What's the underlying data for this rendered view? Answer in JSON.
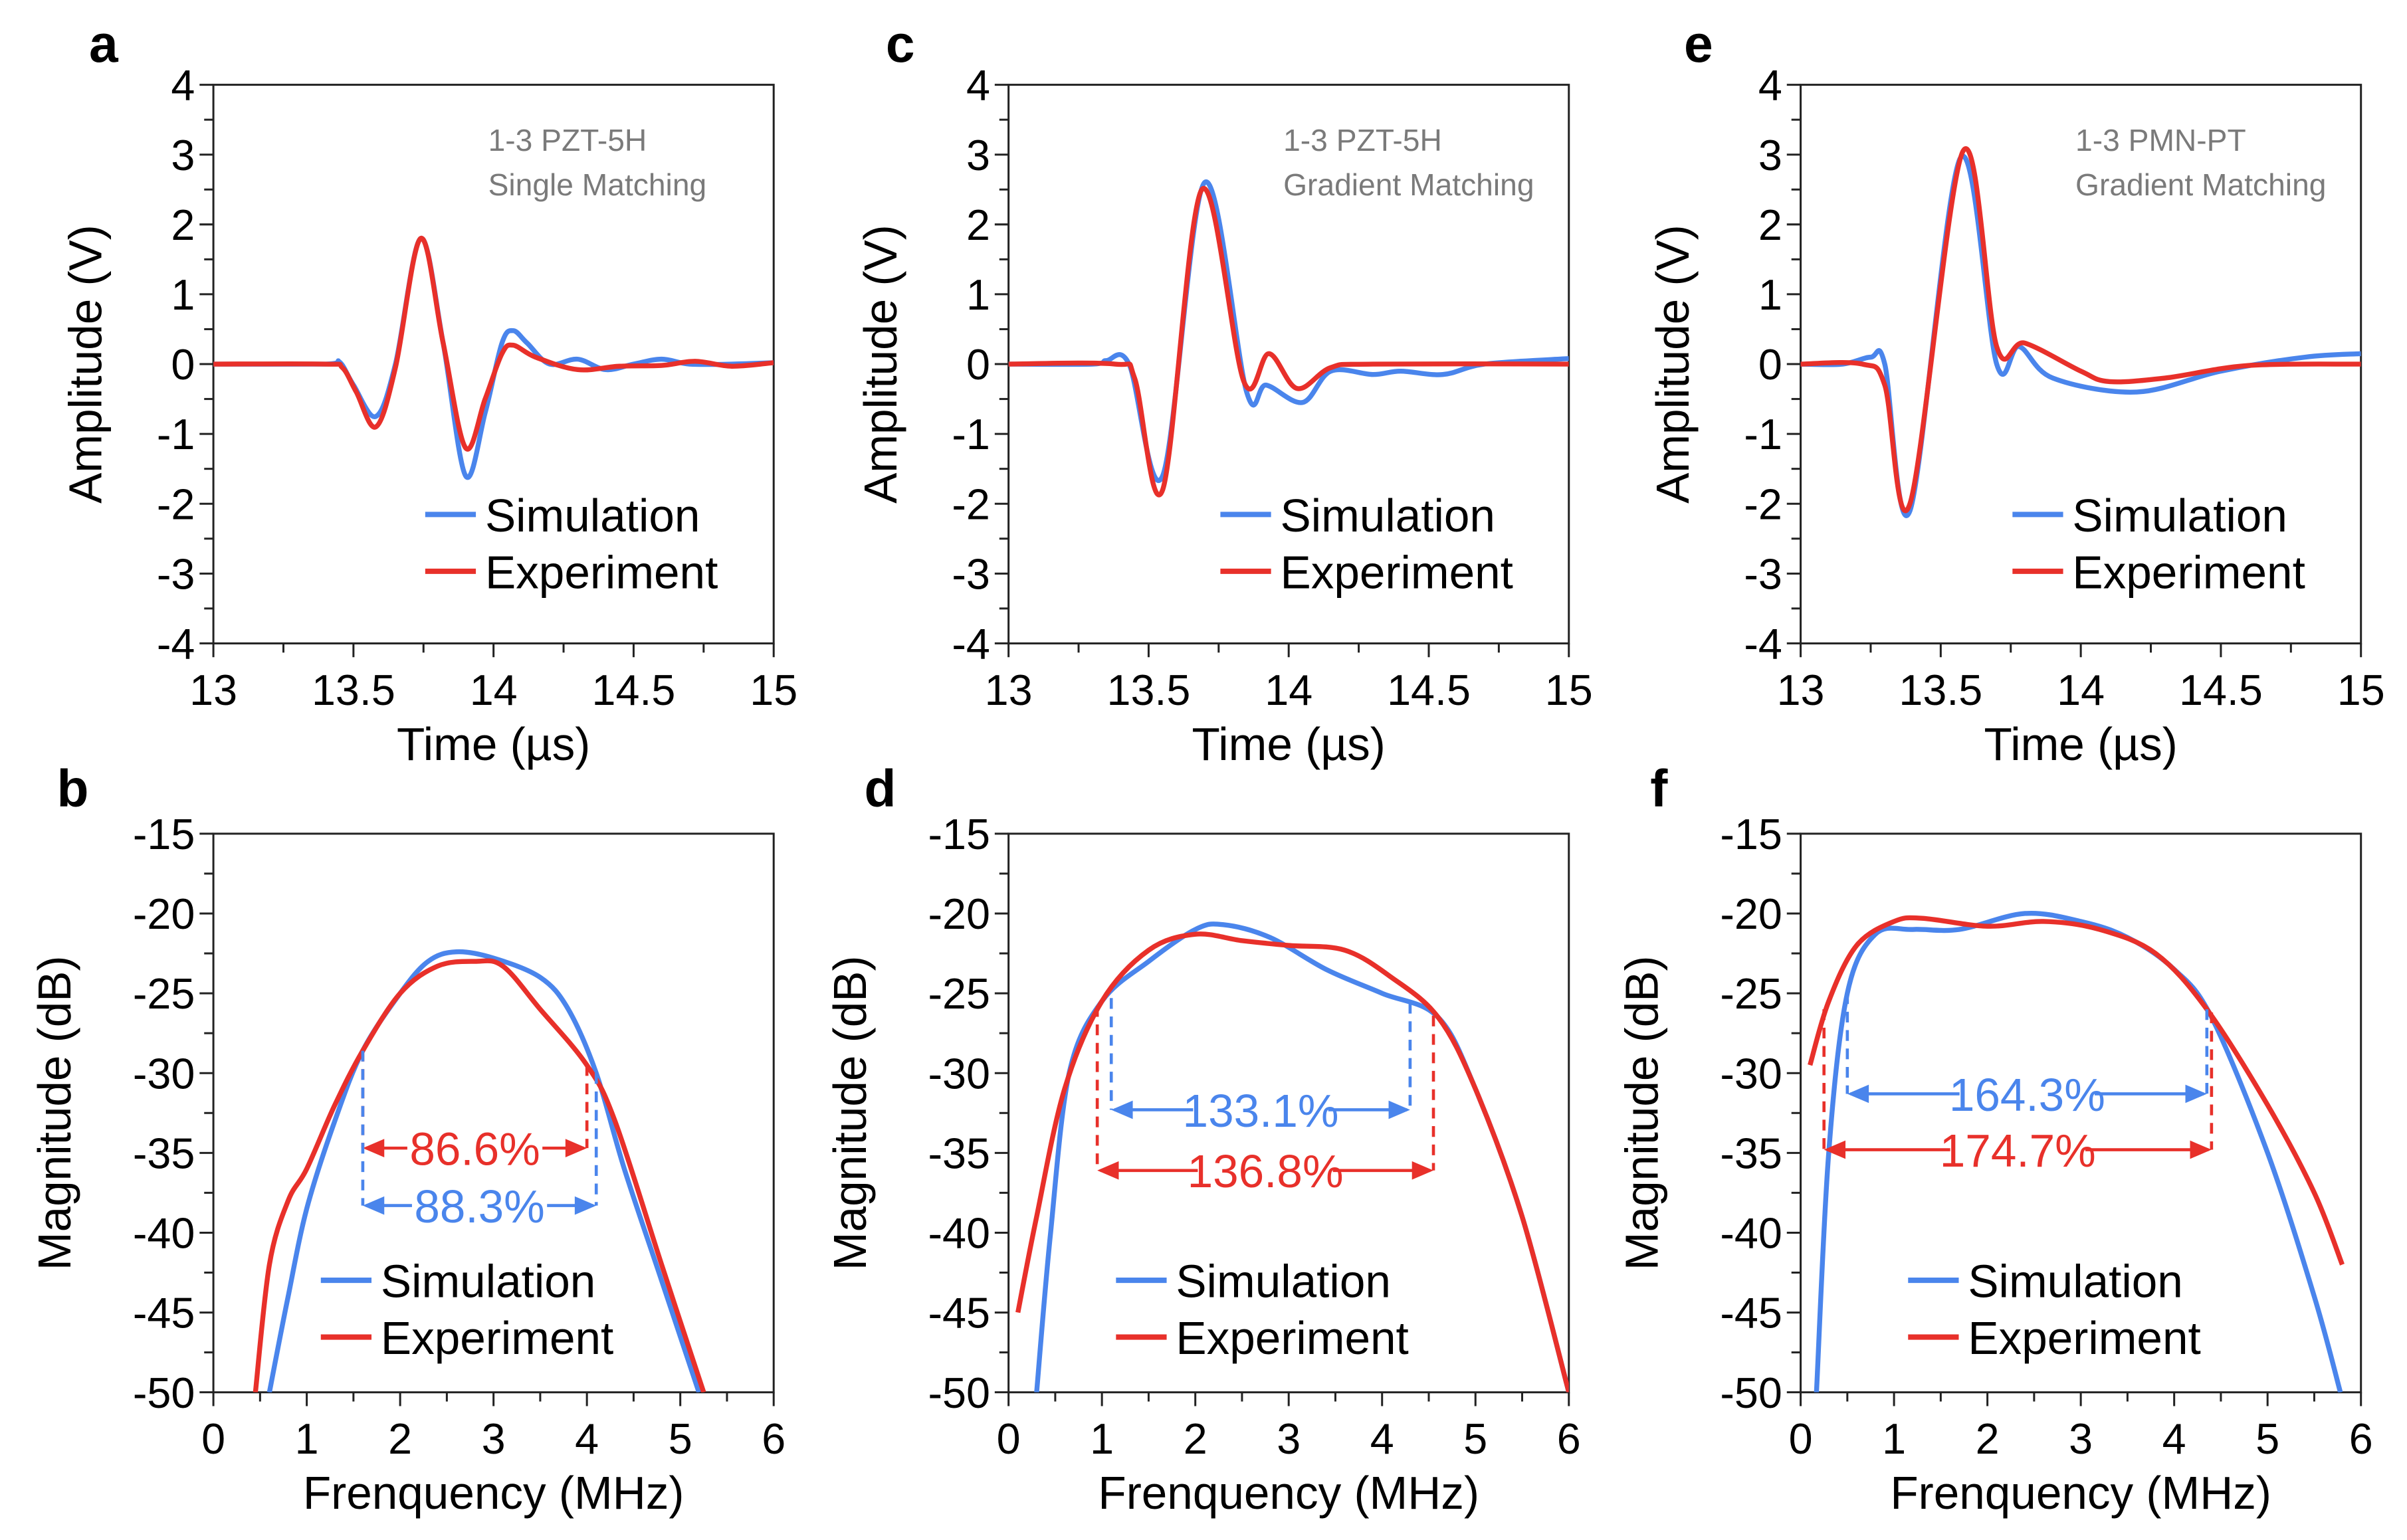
{
  "colors": {
    "simulation": "#4a85ec",
    "experiment": "#e8302a",
    "note": "#7a7a7a"
  },
  "chart_data": [
    {
      "panel": "a",
      "type": "line",
      "xlabel": "Time (µs)",
      "ylabel": "Amplitude (V)",
      "xlim": [
        13,
        15
      ],
      "ylim": [
        -4,
        4
      ],
      "xticks": [
        "13",
        "13.5",
        "14",
        "14.5",
        "15"
      ],
      "xtick_values": [
        13,
        13.5,
        14,
        14.5,
        15
      ],
      "yticks": [
        "-4",
        "-3",
        "-2",
        "-1",
        "0",
        "1",
        "2",
        "3",
        "4"
      ],
      "ytick_values": [
        -4,
        -3,
        -2,
        -1,
        0,
        1,
        2,
        3,
        4
      ],
      "annotation": [
        "1-3 PZT-5H",
        "Single Matching"
      ],
      "series": [
        {
          "name": "Simulation",
          "color": "#4a85ec",
          "points": [
            [
              13,
              0
            ],
            [
              13.4,
              0
            ],
            [
              13.45,
              0.03
            ],
            [
              13.5,
              -0.3
            ],
            [
              13.58,
              -0.75
            ],
            [
              13.65,
              0
            ],
            [
              13.74,
              1.8
            ],
            [
              13.82,
              0.3
            ],
            [
              13.9,
              -1.6
            ],
            [
              13.97,
              -0.7
            ],
            [
              14.03,
              0.3
            ],
            [
              14.07,
              0.48
            ],
            [
              14.12,
              0.3
            ],
            [
              14.2,
              0
            ],
            [
              14.3,
              0.07
            ],
            [
              14.4,
              -0.08
            ],
            [
              14.5,
              0
            ],
            [
              14.6,
              0.07
            ],
            [
              14.7,
              0
            ],
            [
              14.85,
              0
            ],
            [
              15,
              0.02
            ]
          ]
        },
        {
          "name": "Experiment",
          "color": "#e8302a",
          "points": [
            [
              13,
              0
            ],
            [
              13.4,
              0
            ],
            [
              13.46,
              -0.05
            ],
            [
              13.51,
              -0.4
            ],
            [
              13.58,
              -0.9
            ],
            [
              13.65,
              -0.05
            ],
            [
              13.74,
              1.8
            ],
            [
              13.82,
              0.3
            ],
            [
              13.9,
              -1.2
            ],
            [
              13.97,
              -0.5
            ],
            [
              14.03,
              0.15
            ],
            [
              14.07,
              0.27
            ],
            [
              14.15,
              0.1
            ],
            [
              14.3,
              -0.08
            ],
            [
              14.45,
              -0.03
            ],
            [
              14.6,
              -0.02
            ],
            [
              14.72,
              0.04
            ],
            [
              14.85,
              -0.03
            ],
            [
              15,
              0.02
            ]
          ]
        }
      ]
    },
    {
      "panel": "b",
      "type": "line",
      "xlabel": "Frenquency (MHz)",
      "ylabel": "Magnitude (dB)",
      "xlim": [
        0,
        6
      ],
      "ylim": [
        -50,
        -15
      ],
      "xticks": [
        "0",
        "1",
        "2",
        "3",
        "4",
        "5",
        "6"
      ],
      "xtick_values": [
        0,
        1,
        2,
        3,
        4,
        5,
        6
      ],
      "yticks": [
        "-50",
        "-45",
        "-40",
        "-35",
        "-30",
        "-25",
        "-20",
        "-15"
      ],
      "ytick_values": [
        -50,
        -45,
        -40,
        -35,
        -30,
        -25,
        -20,
        -15
      ],
      "series": [
        {
          "name": "Simulation",
          "color": "#4a85ec",
          "points": [
            [
              0.6,
              -50
            ],
            [
              0.8,
              -44
            ],
            [
              1.0,
              -38.5
            ],
            [
              1.3,
              -33
            ],
            [
              1.6,
              -28.6
            ],
            [
              2.0,
              -25
            ],
            [
              2.3,
              -23
            ],
            [
              2.6,
              -22.4
            ],
            [
              3.0,
              -22.8
            ],
            [
              3.5,
              -24
            ],
            [
              3.8,
              -26
            ],
            [
              4.1,
              -30
            ],
            [
              4.4,
              -36
            ],
            [
              4.8,
              -43
            ],
            [
              5.2,
              -50
            ]
          ]
        },
        {
          "name": "Experiment",
          "color": "#e8302a",
          "points": [
            [
              0.45,
              -50
            ],
            [
              0.6,
              -42
            ],
            [
              0.8,
              -38
            ],
            [
              1.0,
              -36
            ],
            [
              1.3,
              -32
            ],
            [
              1.6,
              -28.6
            ],
            [
              2.0,
              -25
            ],
            [
              2.4,
              -23.3
            ],
            [
              2.8,
              -23
            ],
            [
              3.1,
              -23.3
            ],
            [
              3.5,
              -26
            ],
            [
              4.0,
              -29.5
            ],
            [
              4.3,
              -33
            ],
            [
              4.8,
              -42
            ],
            [
              5.25,
              -50
            ]
          ]
        }
      ],
      "bandwidths": [
        {
          "label": "86.6%",
          "color": "#e8302a",
          "x1": 1.6,
          "x2": 4.0,
          "y": -34.7,
          "y1top": -28.6,
          "y2top": -29.5
        },
        {
          "label": "88.3%",
          "color": "#4a85ec",
          "x1": 1.6,
          "x2": 4.1,
          "y": -38.3,
          "y1top": -28.6,
          "y2top": -30
        }
      ]
    },
    {
      "panel": "c",
      "type": "line",
      "xlabel": "Time (µs)",
      "ylabel": "Amplitude (V)",
      "xlim": [
        13,
        15
      ],
      "ylim": [
        -4,
        4
      ],
      "xticks": [
        "13",
        "13.5",
        "14",
        "14.5",
        "15"
      ],
      "xtick_values": [
        13,
        13.5,
        14,
        14.5,
        15
      ],
      "yticks": [
        "-4",
        "-3",
        "-2",
        "-1",
        "0",
        "1",
        "2",
        "3",
        "4"
      ],
      "ytick_values": [
        -4,
        -3,
        -2,
        -1,
        0,
        1,
        2,
        3,
        4
      ],
      "annotation": [
        "1-3 PZT-5H",
        "Gradient Matching"
      ],
      "series": [
        {
          "name": "Simulation",
          "color": "#4a85ec",
          "points": [
            [
              13,
              0
            ],
            [
              13.3,
              0
            ],
            [
              13.35,
              0.05
            ],
            [
              13.43,
              0
            ],
            [
              13.55,
              -1.6
            ],
            [
              13.7,
              2.6
            ],
            [
              13.85,
              -0.4
            ],
            [
              13.92,
              -0.3
            ],
            [
              14.05,
              -0.55
            ],
            [
              14.15,
              -0.1
            ],
            [
              14.3,
              -0.15
            ],
            [
              14.4,
              -0.1
            ],
            [
              14.55,
              -0.15
            ],
            [
              14.7,
              0
            ],
            [
              15,
              0.08
            ]
          ]
        },
        {
          "name": "Experiment",
          "color": "#e8302a",
          "points": [
            [
              13,
              0
            ],
            [
              13.38,
              0
            ],
            [
              13.45,
              -0.2
            ],
            [
              13.55,
              -1.8
            ],
            [
              13.69,
              2.5
            ],
            [
              13.84,
              -0.25
            ],
            [
              13.93,
              0.15
            ],
            [
              14.03,
              -0.35
            ],
            [
              14.15,
              -0.05
            ],
            [
              14.3,
              0
            ],
            [
              15,
              0
            ]
          ]
        }
      ]
    },
    {
      "panel": "d",
      "type": "line",
      "xlabel": "Frenquency (MHz)",
      "ylabel": "Magnitude (dB)",
      "xlim": [
        0,
        6
      ],
      "ylim": [
        -50,
        -15
      ],
      "xticks": [
        "0",
        "1",
        "2",
        "3",
        "4",
        "5",
        "6"
      ],
      "xtick_values": [
        0,
        1,
        2,
        3,
        4,
        5,
        6
      ],
      "yticks": [
        "-50",
        "-45",
        "-40",
        "-35",
        "-30",
        "-25",
        "-20",
        "-15"
      ],
      "ytick_values": [
        -50,
        -45,
        -40,
        -35,
        -30,
        -25,
        -20,
        -15
      ],
      "series": [
        {
          "name": "Simulation",
          "color": "#4a85ec",
          "points": [
            [
              0.3,
              -50
            ],
            [
              0.45,
              -40
            ],
            [
              0.65,
              -30
            ],
            [
              1.0,
              -25.5
            ],
            [
              1.5,
              -23
            ],
            [
              2.0,
              -21
            ],
            [
              2.3,
              -20.7
            ],
            [
              2.8,
              -21.5
            ],
            [
              3.4,
              -23.5
            ],
            [
              4.0,
              -25
            ],
            [
              4.6,
              -26.5
            ],
            [
              5.0,
              -31
            ],
            [
              5.5,
              -39
            ],
            [
              6,
              -50
            ]
          ]
        },
        {
          "name": "Experiment",
          "color": "#e8302a",
          "points": [
            [
              0.1,
              -45
            ],
            [
              0.3,
              -39
            ],
            [
              0.6,
              -31
            ],
            [
              1.0,
              -25.5
            ],
            [
              1.5,
              -22.3
            ],
            [
              2.0,
              -21.3
            ],
            [
              2.5,
              -21.7
            ],
            [
              3.0,
              -22.0
            ],
            [
              3.6,
              -22.3
            ],
            [
              4.1,
              -24
            ],
            [
              4.6,
              -26.5
            ],
            [
              5.0,
              -31
            ],
            [
              5.5,
              -39
            ],
            [
              6,
              -50
            ]
          ]
        }
      ],
      "bandwidths": [
        {
          "label": "133.1%",
          "color": "#4a85ec",
          "x1": 1.1,
          "x2": 4.3,
          "y": -32.3,
          "y1top": -25.3,
          "y2top": -25.6
        },
        {
          "label": "136.8%",
          "color": "#e8302a",
          "x1": 0.95,
          "x2": 4.55,
          "y": -36.1,
          "y1top": -25.8,
          "y2top": -26.4
        }
      ]
    },
    {
      "panel": "e",
      "type": "line",
      "xlabel": "Time (µs)",
      "ylabel": "Amplitude (V)",
      "xlim": [
        13,
        15
      ],
      "ylim": [
        -4,
        4
      ],
      "xticks": [
        "13",
        "13.5",
        "14",
        "14.5",
        "15"
      ],
      "xtick_values": [
        13,
        13.5,
        14,
        14.5,
        15
      ],
      "yticks": [
        "-4",
        "-3",
        "-2",
        "-1",
        "0",
        "1",
        "2",
        "3",
        "4"
      ],
      "ytick_values": [
        -4,
        -3,
        -2,
        -1,
        0,
        1,
        2,
        3,
        4
      ],
      "annotation": [
        "1-3 PMN-PT",
        "Gradient Matching"
      ],
      "series": [
        {
          "name": "Simulation",
          "color": "#4a85ec",
          "points": [
            [
              13,
              0
            ],
            [
              13.15,
              0
            ],
            [
              13.25,
              0.1
            ],
            [
              13.3,
              0
            ],
            [
              13.39,
              -2.1
            ],
            [
              13.57,
              2.95
            ],
            [
              13.7,
              0
            ],
            [
              13.78,
              0.25
            ],
            [
              13.9,
              -0.2
            ],
            [
              14.2,
              -0.4
            ],
            [
              14.5,
              -0.1
            ],
            [
              14.8,
              0.1
            ],
            [
              15,
              0.15
            ]
          ]
        },
        {
          "name": "Experiment",
          "color": "#e8302a",
          "points": [
            [
              13,
              0
            ],
            [
              13.22,
              0
            ],
            [
              13.3,
              -0.3
            ],
            [
              13.39,
              -2.0
            ],
            [
              13.58,
              3.05
            ],
            [
              13.7,
              0.25
            ],
            [
              13.8,
              0.3
            ],
            [
              14.0,
              -0.1
            ],
            [
              14.1,
              -0.25
            ],
            [
              14.3,
              -0.2
            ],
            [
              14.6,
              -0.02
            ],
            [
              15,
              0
            ]
          ]
        }
      ]
    },
    {
      "panel": "f",
      "type": "line",
      "xlabel": "Frenquency (MHz)",
      "ylabel": "Magnitude (dB)",
      "xlim": [
        0,
        6
      ],
      "ylim": [
        -50,
        -15
      ],
      "xticks": [
        "0",
        "1",
        "2",
        "3",
        "4",
        "5",
        "6"
      ],
      "xtick_values": [
        0,
        1,
        2,
        3,
        4,
        5,
        6
      ],
      "yticks": [
        "-50",
        "-45",
        "-40",
        "-35",
        "-30",
        "-25",
        "-20",
        "-15"
      ],
      "ytick_values": [
        -50,
        -45,
        -40,
        -35,
        -30,
        -25,
        -20,
        -15
      ],
      "series": [
        {
          "name": "Simulation",
          "color": "#4a85ec",
          "points": [
            [
              0.17,
              -50
            ],
            [
              0.3,
              -35
            ],
            [
              0.5,
              -25
            ],
            [
              0.8,
              -21.3
            ],
            [
              1.2,
              -21
            ],
            [
              1.7,
              -21
            ],
            [
              2.4,
              -20
            ],
            [
              3.0,
              -20.5
            ],
            [
              3.5,
              -21.5
            ],
            [
              4.0,
              -23.5
            ],
            [
              4.4,
              -26.5
            ],
            [
              5.0,
              -35
            ],
            [
              5.5,
              -44
            ],
            [
              5.78,
              -50
            ]
          ]
        },
        {
          "name": "Experiment",
          "color": "#e8302a",
          "points": [
            [
              0.1,
              -29.5
            ],
            [
              0.3,
              -25.5
            ],
            [
              0.6,
              -22
            ],
            [
              1.0,
              -20.5
            ],
            [
              1.3,
              -20.3
            ],
            [
              2.0,
              -20.8
            ],
            [
              2.6,
              -20.5
            ],
            [
              3.2,
              -21
            ],
            [
              3.8,
              -22.5
            ],
            [
              4.35,
              -26
            ],
            [
              5.0,
              -32
            ],
            [
              5.5,
              -37.5
            ],
            [
              5.8,
              -42
            ]
          ]
        }
      ],
      "bandwidths": [
        {
          "label": "164.3%",
          "color": "#4a85ec",
          "x1": 0.5,
          "x2": 4.35,
          "y": -31.3,
          "y1top": -25,
          "y2top": -26
        },
        {
          "label": "174.7%",
          "color": "#e8302a",
          "x1": 0.25,
          "x2": 4.4,
          "y": -34.8,
          "y1top": -26,
          "y2top": -26.2
        }
      ]
    }
  ]
}
